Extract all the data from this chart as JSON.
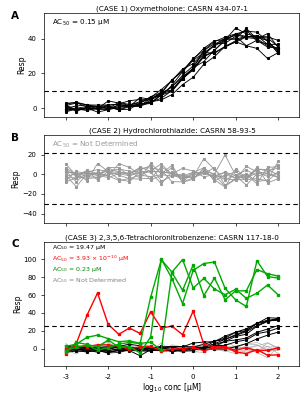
{
  "panel_A": {
    "title": "(CASE 1) Oxymetholone: CASRN 434-07-1",
    "label": "A",
    "annotation": "AC$_{50}$ = 0.15 μM",
    "annotation_color": "black",
    "ylim": [
      -5,
      55
    ],
    "yticks": [
      0,
      20,
      40
    ],
    "dashed_line": 10,
    "color": "black"
  },
  "panel_B": {
    "title": "(CASE 2) Hydrochlorothiazide: CASRN 58-93-5",
    "label": "B",
    "annotation": "AC$_{50}$ = Not Determined",
    "annotation_color": "gray",
    "ylim": [
      -50,
      40
    ],
    "yticks": [
      -40,
      -20,
      0,
      20
    ],
    "dashed_lines": [
      22,
      -30
    ],
    "color": "gray"
  },
  "panel_C": {
    "title": "(CASE 3) 2,3,5,6-Tetrachloronitrobenzene: CASRN 117-18-0",
    "label": "C",
    "annotations": [
      {
        "text": "AC$_{50}$ = 19.47 μM",
        "color": "black"
      },
      {
        "text": "AC$_{50}$ = 3.93 × 10$^{-10}$ μM",
        "color": "red"
      },
      {
        "text": "AC$_{50}$ = 0.23 μM",
        "color": "green"
      },
      {
        "text": "AC$_{50}$ = Not Determined",
        "color": "gray"
      }
    ],
    "ylim": [
      -20,
      120
    ],
    "yticks": [
      0,
      20,
      40,
      60,
      80,
      100
    ],
    "dashed_line": 25,
    "colors": [
      "black",
      "red",
      "green",
      "gray"
    ]
  },
  "xlabel": "log$_{10}$ conc [μM]",
  "xticks": [
    -3,
    -2,
    -1,
    0,
    1,
    2
  ],
  "xlim": [
    -3.5,
    2.5
  ],
  "background_color": "white"
}
